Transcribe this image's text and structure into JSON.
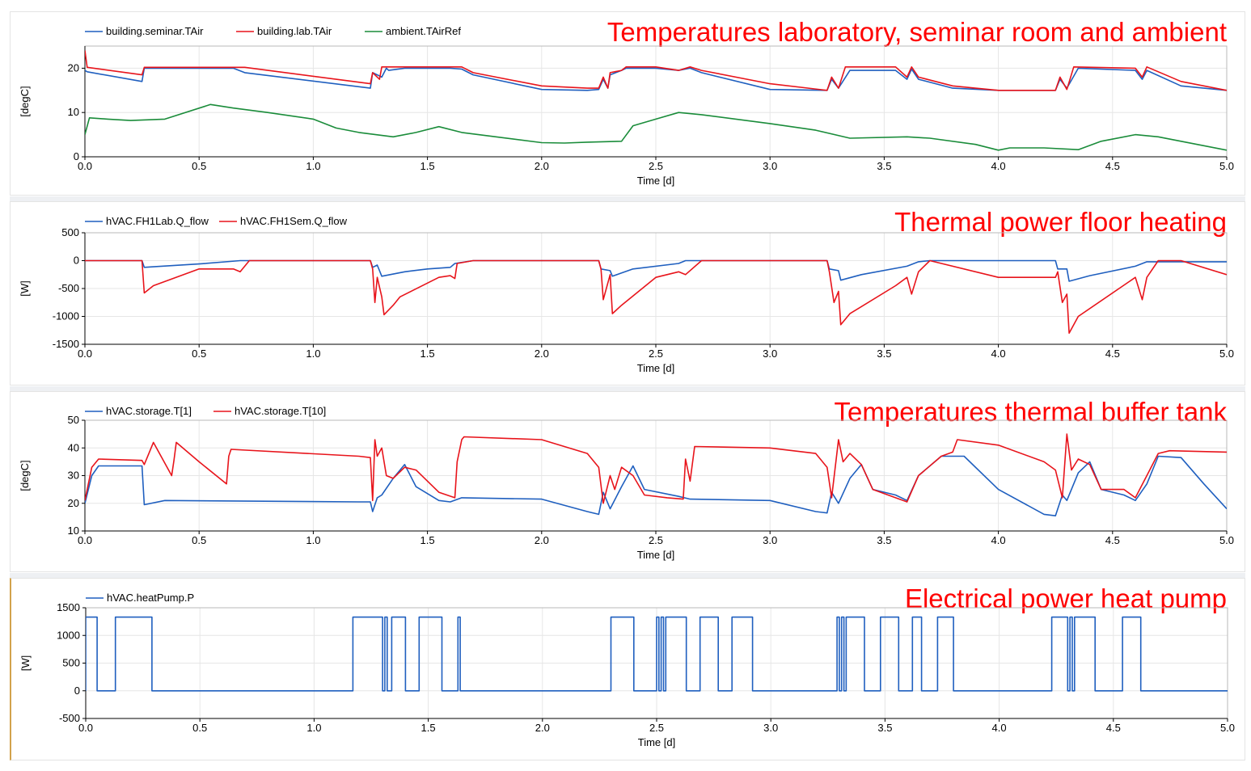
{
  "chart_data": [
    {
      "type": "line",
      "title": "Temperatures laboratory, seminar room and ambient",
      "xlabel": "Time [d]",
      "ylabel": "[degC]",
      "xlim": [
        0,
        5
      ],
      "ylim": [
        0,
        25
      ],
      "xticks": [
        0.0,
        0.5,
        1.0,
        1.5,
        2.0,
        2.5,
        3.0,
        3.5,
        4.0,
        4.5,
        5.0
      ],
      "yticks": [
        0,
        10,
        20
      ],
      "grid": true,
      "legend": "top-left",
      "series": [
        {
          "name": "building.seminar.TAir",
          "color": "#1f5fbf",
          "x": [
            0,
            0.01,
            0.25,
            0.26,
            0.65,
            0.7,
            1.25,
            1.26,
            1.3,
            1.32,
            1.33,
            1.4,
            1.6,
            1.65,
            1.7,
            2.0,
            2.2,
            2.25,
            2.27,
            2.29,
            2.3,
            2.35,
            2.37,
            2.5,
            2.6,
            2.65,
            2.7,
            3.0,
            3.25,
            3.27,
            3.3,
            3.35,
            3.55,
            3.6,
            3.62,
            3.65,
            3.8,
            4.0,
            4.25,
            4.27,
            4.3,
            4.35,
            4.6,
            4.63,
            4.65,
            4.8,
            5.0
          ],
          "y": [
            19.5,
            19.2,
            17.0,
            20,
            20,
            19,
            15.5,
            19,
            18,
            20,
            19.5,
            20,
            20,
            19.8,
            18.5,
            15.2,
            15,
            15.2,
            17.5,
            15.5,
            18.5,
            19.5,
            20,
            20,
            19.5,
            20,
            19,
            15.2,
            15,
            17.5,
            15.5,
            19.5,
            19.5,
            17.5,
            19.8,
            17.5,
            15.5,
            15,
            15,
            17.5,
            15.5,
            20,
            19.5,
            17.5,
            19.5,
            16,
            15
          ]
        },
        {
          "name": "building.lab.TAir",
          "color": "#e8141b",
          "x": [
            0,
            0.01,
            0.25,
            0.26,
            0.65,
            0.7,
            1.25,
            1.26,
            1.29,
            1.3,
            1.32,
            1.4,
            1.6,
            1.65,
            1.7,
            2.0,
            2.2,
            2.25,
            2.27,
            2.29,
            2.3,
            2.35,
            2.37,
            2.5,
            2.6,
            2.65,
            2.7,
            3.0,
            3.25,
            3.27,
            3.3,
            3.33,
            3.55,
            3.6,
            3.62,
            3.65,
            3.8,
            4.0,
            4.25,
            4.27,
            4.3,
            4.33,
            4.6,
            4.63,
            4.65,
            4.8,
            5.0
          ],
          "y": [
            24,
            20.2,
            18.5,
            20.2,
            20.2,
            20.2,
            16.5,
            19,
            17.5,
            20.3,
            20.3,
            20.3,
            20.3,
            20.3,
            19,
            16,
            15.5,
            15.5,
            18,
            15.5,
            19,
            19.5,
            20.3,
            20.3,
            19.5,
            20.3,
            19.5,
            16.5,
            15,
            18,
            15.5,
            20.3,
            20.3,
            18,
            20.3,
            18,
            16,
            15,
            15,
            18,
            15.2,
            20.3,
            20,
            18,
            20.3,
            17,
            15
          ]
        },
        {
          "name": "ambient.TAirRef",
          "color": "#1a8c3a",
          "x": [
            0,
            0.02,
            0.1,
            0.2,
            0.35,
            0.55,
            0.65,
            0.8,
            1.0,
            1.1,
            1.2,
            1.35,
            1.45,
            1.55,
            1.65,
            1.8,
            2.0,
            2.1,
            2.2,
            2.35,
            2.4,
            2.5,
            2.6,
            2.7,
            3.0,
            3.2,
            3.35,
            3.6,
            3.7,
            3.9,
            4.0,
            4.05,
            4.2,
            4.35,
            4.45,
            4.6,
            4.7,
            4.8,
            5.0
          ],
          "y": [
            5,
            8.8,
            8.5,
            8.2,
            8.5,
            11.8,
            11,
            10,
            8.5,
            6.5,
            5.5,
            4.5,
            5.5,
            6.8,
            5.5,
            4.5,
            3.2,
            3.1,
            3.3,
            3.5,
            7,
            8.5,
            10,
            9.5,
            7.5,
            6,
            4.2,
            4.5,
            4.2,
            2.8,
            1.5,
            2,
            2,
            1.6,
            3.5,
            5,
            4.5,
            3.5,
            1.5
          ]
        }
      ]
    },
    {
      "type": "line",
      "title": "Thermal power floor heating",
      "xlabel": "Time [d]",
      "ylabel": "[W]",
      "xlim": [
        0,
        5
      ],
      "ylim": [
        -1500,
        500
      ],
      "xticks": [
        0.0,
        0.5,
        1.0,
        1.5,
        2.0,
        2.5,
        3.0,
        3.5,
        4.0,
        4.5,
        5.0
      ],
      "yticks": [
        -1500,
        -1000,
        -500,
        0,
        500
      ],
      "grid": true,
      "legend": "top-left",
      "series": [
        {
          "name": "hVAC.FH1Lab.Q_flow",
          "color": "#1f5fbf",
          "x": [
            0,
            0.25,
            0.26,
            0.3,
            0.5,
            0.68,
            0.72,
            1.25,
            1.26,
            1.28,
            1.3,
            1.4,
            1.5,
            1.6,
            1.62,
            1.7,
            2.0,
            2.25,
            2.26,
            2.3,
            2.31,
            2.35,
            2.4,
            2.6,
            2.63,
            2.7,
            3.0,
            3.25,
            3.26,
            3.3,
            3.31,
            3.4,
            3.6,
            3.65,
            3.7,
            4.0,
            4.25,
            4.26,
            4.3,
            4.31,
            4.4,
            4.6,
            4.65,
            5.0
          ],
          "y": [
            0,
            0,
            -120,
            -110,
            -60,
            0,
            0,
            0,
            -120,
            -80,
            -280,
            -200,
            -150,
            -120,
            -50,
            0,
            0,
            0,
            -150,
            -180,
            -280,
            -220,
            -150,
            -50,
            0,
            0,
            0,
            0,
            -150,
            -180,
            -350,
            -250,
            -100,
            -20,
            0,
            0,
            0,
            -150,
            -150,
            -370,
            -270,
            -100,
            -20,
            -20
          ]
        },
        {
          "name": "hVAC.FH1Sem.Q_flow",
          "color": "#e8141b",
          "x": [
            0,
            0.25,
            0.26,
            0.3,
            0.5,
            0.65,
            0.68,
            0.72,
            1.25,
            1.26,
            1.27,
            1.28,
            1.3,
            1.31,
            1.35,
            1.38,
            1.55,
            1.6,
            1.62,
            1.63,
            1.7,
            2.0,
            2.25,
            2.26,
            2.27,
            2.3,
            2.31,
            2.35,
            2.5,
            2.6,
            2.63,
            2.7,
            3.0,
            3.25,
            3.26,
            3.28,
            3.3,
            3.31,
            3.35,
            3.55,
            3.6,
            3.62,
            3.65,
            3.7,
            4.0,
            4.25,
            4.26,
            4.28,
            4.3,
            4.31,
            4.35,
            4.6,
            4.63,
            4.65,
            4.7,
            4.8,
            5.0
          ],
          "y": [
            0,
            0,
            -580,
            -450,
            -150,
            -150,
            -200,
            0,
            0,
            -150,
            -750,
            -300,
            -650,
            -970,
            -800,
            -650,
            -300,
            -270,
            -320,
            -50,
            0,
            0,
            0,
            -150,
            -700,
            -250,
            -950,
            -800,
            -300,
            -200,
            -250,
            0,
            0,
            0,
            -200,
            -750,
            -550,
            -1150,
            -950,
            -450,
            -300,
            -600,
            -200,
            0,
            -300,
            -300,
            -200,
            -750,
            -600,
            -1300,
            -1000,
            -300,
            -700,
            -300,
            0,
            0,
            -250
          ]
        }
      ]
    },
    {
      "type": "line",
      "title": "Temperatures thermal buffer tank",
      "xlabel": "Time [d]",
      "ylabel": "[degC]",
      "xlim": [
        0,
        5
      ],
      "ylim": [
        10,
        50
      ],
      "xticks": [
        0.0,
        0.5,
        1.0,
        1.5,
        2.0,
        2.5,
        3.0,
        3.5,
        4.0,
        4.5,
        5.0
      ],
      "yticks": [
        10,
        20,
        30,
        40,
        50
      ],
      "grid": true,
      "legend": "top-left",
      "series": [
        {
          "name": "hVAC.storage.T[1]",
          "color": "#1f5fbf",
          "x": [
            0,
            0.03,
            0.06,
            0.25,
            0.26,
            0.35,
            1.2,
            1.25,
            1.26,
            1.28,
            1.3,
            1.35,
            1.4,
            1.45,
            1.55,
            1.6,
            1.65,
            2.0,
            2.2,
            2.25,
            2.27,
            2.3,
            2.35,
            2.4,
            2.45,
            2.6,
            2.65,
            3.0,
            3.2,
            3.25,
            3.27,
            3.3,
            3.35,
            3.4,
            3.45,
            3.55,
            3.6,
            3.65,
            3.75,
            3.85,
            4.0,
            4.2,
            4.25,
            4.28,
            4.3,
            4.35,
            4.4,
            4.45,
            4.55,
            4.6,
            4.65,
            4.7,
            4.8,
            4.9,
            5.0
          ],
          "y": [
            20,
            30,
            33.5,
            33.5,
            19.5,
            21,
            20.5,
            20.5,
            17,
            22,
            23,
            29,
            34,
            26,
            21,
            20.5,
            22,
            21.5,
            17,
            16,
            24,
            18,
            26,
            33.5,
            25,
            22.5,
            21.5,
            21,
            17,
            16.5,
            24,
            20,
            29,
            34,
            25,
            23,
            21,
            30,
            37,
            37,
            25,
            16,
            15.5,
            23,
            21,
            31,
            35,
            25,
            23,
            21,
            27,
            37,
            36.5,
            27,
            18
          ]
        },
        {
          "name": "hVAC.storage.T[10]",
          "color": "#e8141b",
          "x": [
            0,
            0.03,
            0.06,
            0.25,
            0.26,
            0.28,
            0.3,
            0.38,
            0.39,
            0.4,
            0.5,
            0.62,
            0.63,
            0.64,
            1.2,
            1.25,
            1.26,
            1.27,
            1.28,
            1.3,
            1.32,
            1.35,
            1.4,
            1.45,
            1.55,
            1.62,
            1.63,
            1.65,
            1.66,
            2.0,
            2.2,
            2.25,
            2.27,
            2.3,
            2.32,
            2.35,
            2.4,
            2.45,
            2.55,
            2.62,
            2.63,
            2.65,
            2.67,
            3.0,
            3.2,
            3.25,
            3.27,
            3.3,
            3.32,
            3.35,
            3.4,
            3.45,
            3.55,
            3.6,
            3.65,
            3.75,
            3.8,
            3.82,
            4.0,
            4.2,
            4.25,
            4.28,
            4.3,
            4.32,
            4.35,
            4.4,
            4.45,
            4.55,
            4.6,
            4.65,
            4.7,
            4.75,
            5.0
          ],
          "y": [
            21,
            33,
            36,
            35.5,
            34,
            38,
            42,
            30,
            35.5,
            42,
            35,
            27,
            37,
            39.5,
            37,
            36.5,
            21,
            43,
            37,
            40,
            30,
            29,
            33,
            32,
            24,
            22,
            35,
            43,
            44,
            43,
            38,
            33,
            20,
            30,
            25,
            33,
            30,
            23,
            22,
            21.5,
            36,
            28,
            40.5,
            40,
            38,
            33,
            22,
            43,
            35,
            38,
            34,
            25,
            22,
            20.5,
            30,
            37,
            38.5,
            43,
            41,
            35,
            32,
            22,
            45,
            32,
            36,
            34,
            25,
            25,
            22,
            30,
            38,
            39,
            38.5
          ]
        }
      ]
    },
    {
      "type": "line",
      "title": "Electrical power heat pump",
      "xlabel": "Time [d]",
      "ylabel": "[W]",
      "xlim": [
        0,
        5
      ],
      "ylim": [
        -500,
        1500
      ],
      "xticks": [
        0.0,
        0.5,
        1.0,
        1.5,
        2.0,
        2.5,
        3.0,
        3.5,
        4.0,
        4.5,
        5.0
      ],
      "yticks": [
        -500,
        0,
        500,
        1000,
        1500
      ],
      "grid": true,
      "legend": "top-left",
      "series": [
        {
          "name": "hVAC.heatPump.P",
          "color": "#1f5fbf",
          "on_power": 1330,
          "on_intervals": [
            [
              0.0,
              0.05
            ],
            [
              0.13,
              0.29
            ],
            [
              1.17,
              1.3
            ],
            [
              1.31,
              1.32
            ],
            [
              1.34,
              1.4
            ],
            [
              1.46,
              1.56
            ],
            [
              1.63,
              1.64
            ],
            [
              2.3,
              2.4
            ],
            [
              2.5,
              2.51
            ],
            [
              2.52,
              2.53
            ],
            [
              2.54,
              2.63
            ],
            [
              2.69,
              2.77
            ],
            [
              2.83,
              2.92
            ],
            [
              3.29,
              3.3
            ],
            [
              3.31,
              3.32
            ],
            [
              3.33,
              3.41
            ],
            [
              3.48,
              3.56
            ],
            [
              3.62,
              3.66
            ],
            [
              3.73,
              3.8
            ],
            [
              4.23,
              4.3
            ],
            [
              4.31,
              4.32
            ],
            [
              4.33,
              4.42
            ],
            [
              4.54,
              4.62
            ]
          ]
        }
      ]
    }
  ]
}
